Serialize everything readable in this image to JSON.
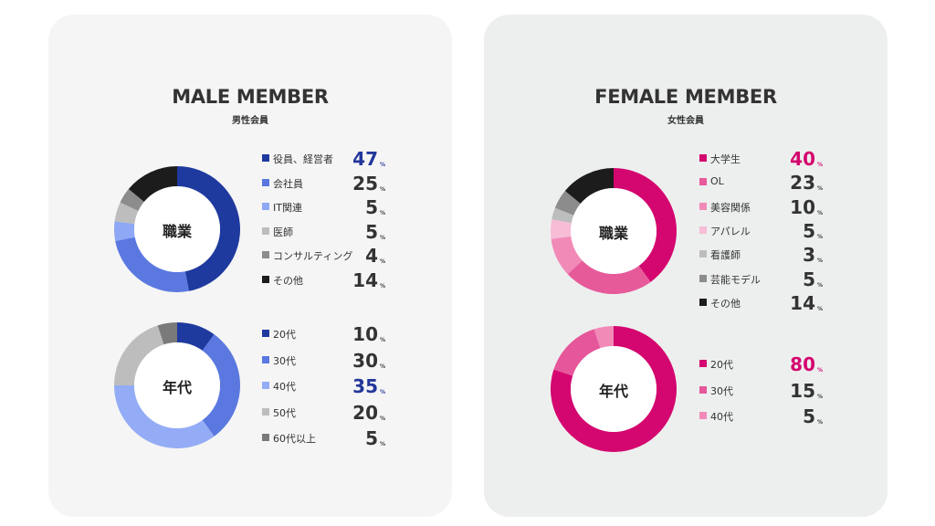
{
  "male": {
    "title": "MALE MEMBER",
    "subtitle": "男性会員",
    "highlight_color": "#23379b"
  },
  "female": {
    "title": "FEMALE MEMBER",
    "subtitle": "女性会員",
    "highlight_color": "#d4066f"
  },
  "chart_data": [
    {
      "type": "pie",
      "name": "職業",
      "group": "male",
      "center_label": "職業",
      "categories": [
        "役員、経営者",
        "会社員",
        "IT関連",
        "医師",
        "コンサルティング",
        "その他"
      ],
      "values": [
        47,
        25,
        5,
        5,
        4,
        14
      ],
      "colors": [
        "#1f3a9e",
        "#5a78e0",
        "#8fa8f5",
        "#bdbdbd",
        "#8c8c8c",
        "#1c1c1c"
      ],
      "unit": "%",
      "highlight_index": 0
    },
    {
      "type": "pie",
      "name": "年代",
      "group": "male",
      "center_label": "年代",
      "categories": [
        "20代",
        "30代",
        "40代",
        "50代",
        "60代以上"
      ],
      "values": [
        10,
        30,
        35,
        20,
        5
      ],
      "colors": [
        "#1f3a9e",
        "#5a78e0",
        "#93acf5",
        "#bdbdbd",
        "#7a7a7a"
      ],
      "unit": "%",
      "highlight_index": 2
    },
    {
      "type": "pie",
      "name": "職業",
      "group": "female",
      "center_label": "職業",
      "categories": [
        "大学生",
        "OL",
        "美容関係",
        "アパレル",
        "看護師",
        "芸能モデル",
        "その他"
      ],
      "values": [
        40,
        23,
        10,
        5,
        3,
        5,
        14
      ],
      "colors": [
        "#d4066f",
        "#e65a9a",
        "#f28ab8",
        "#f7bcd6",
        "#bdbdbd",
        "#8c8c8c",
        "#1c1c1c"
      ],
      "unit": "%",
      "highlight_index": 0
    },
    {
      "type": "pie",
      "name": "年代",
      "group": "female",
      "center_label": "年代",
      "categories": [
        "20代",
        "30代",
        "40代"
      ],
      "values": [
        80,
        15,
        5
      ],
      "colors": [
        "#d4066f",
        "#e6569a",
        "#f28ab8"
      ],
      "unit": "%",
      "highlight_index": 0
    }
  ]
}
